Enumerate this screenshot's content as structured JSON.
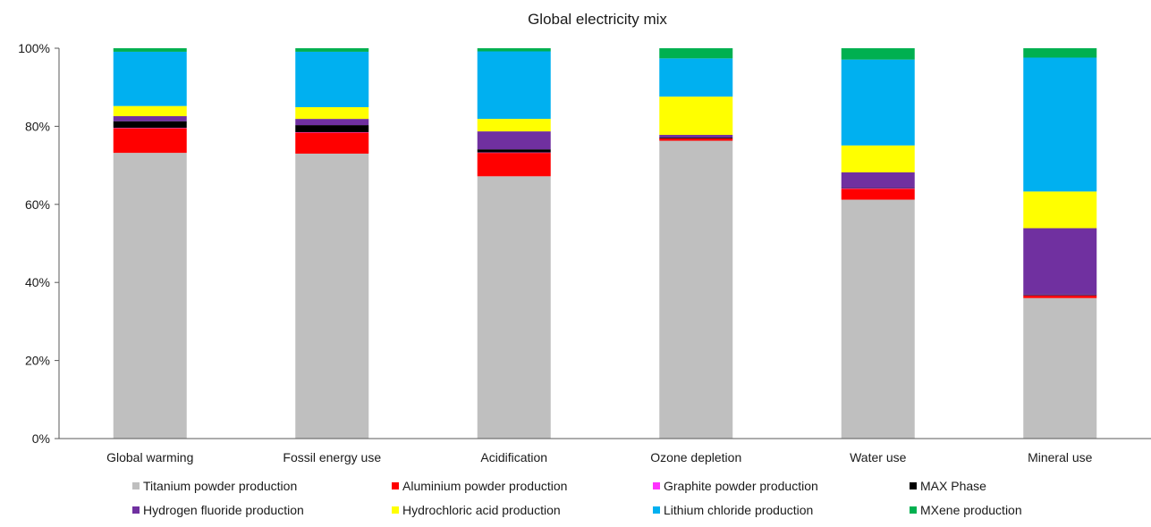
{
  "chart_data": {
    "type": "bar",
    "stacked": true,
    "percent_stacked": true,
    "title": "Global electricity mix",
    "xlabel": "",
    "ylabel": "",
    "ylim": [
      0,
      100
    ],
    "y_ticks": [
      "0%",
      "20%",
      "40%",
      "60%",
      "80%",
      "100%"
    ],
    "grid": false,
    "legend_position": "bottom",
    "categories": [
      "Global warming",
      "Fossil energy use",
      "Acidification",
      "Ozone depletion",
      "Water use",
      "Mineral use"
    ],
    "series": [
      {
        "name": "Titanium powder production",
        "color": "#bfbfbf",
        "values": [
          73.2,
          73.0,
          67.2,
          76.3,
          61.2,
          36.0
        ]
      },
      {
        "name": "Aluminium powder production",
        "color": "#ff0000",
        "values": [
          6.3,
          5.4,
          6.0,
          0.6,
          2.8,
          0.6
        ]
      },
      {
        "name": "Graphite powder production",
        "color": "#ff33ff",
        "values": [
          0.1,
          0.1,
          0.1,
          0.0,
          0.1,
          0.1
        ]
      },
      {
        "name": "MAX Phase",
        "color": "#000000",
        "values": [
          1.7,
          1.8,
          0.8,
          0.2,
          0.1,
          0.2
        ]
      },
      {
        "name": "Hydrogen fluoride production",
        "color": "#7030a0",
        "values": [
          1.3,
          1.6,
          4.6,
          0.7,
          4.0,
          17.0
        ]
      },
      {
        "name": "Hydrochloric acid production",
        "color": "#ffff00",
        "values": [
          2.6,
          3.0,
          3.2,
          9.8,
          6.9,
          9.4
        ]
      },
      {
        "name": "Lithium chloride production",
        "color": "#00b0f0",
        "values": [
          13.9,
          14.2,
          17.3,
          9.8,
          22.0,
          34.3
        ]
      },
      {
        "name": "MXene production",
        "color": "#00b050",
        "values": [
          0.9,
          0.9,
          0.8,
          2.6,
          2.9,
          2.4
        ]
      }
    ]
  }
}
